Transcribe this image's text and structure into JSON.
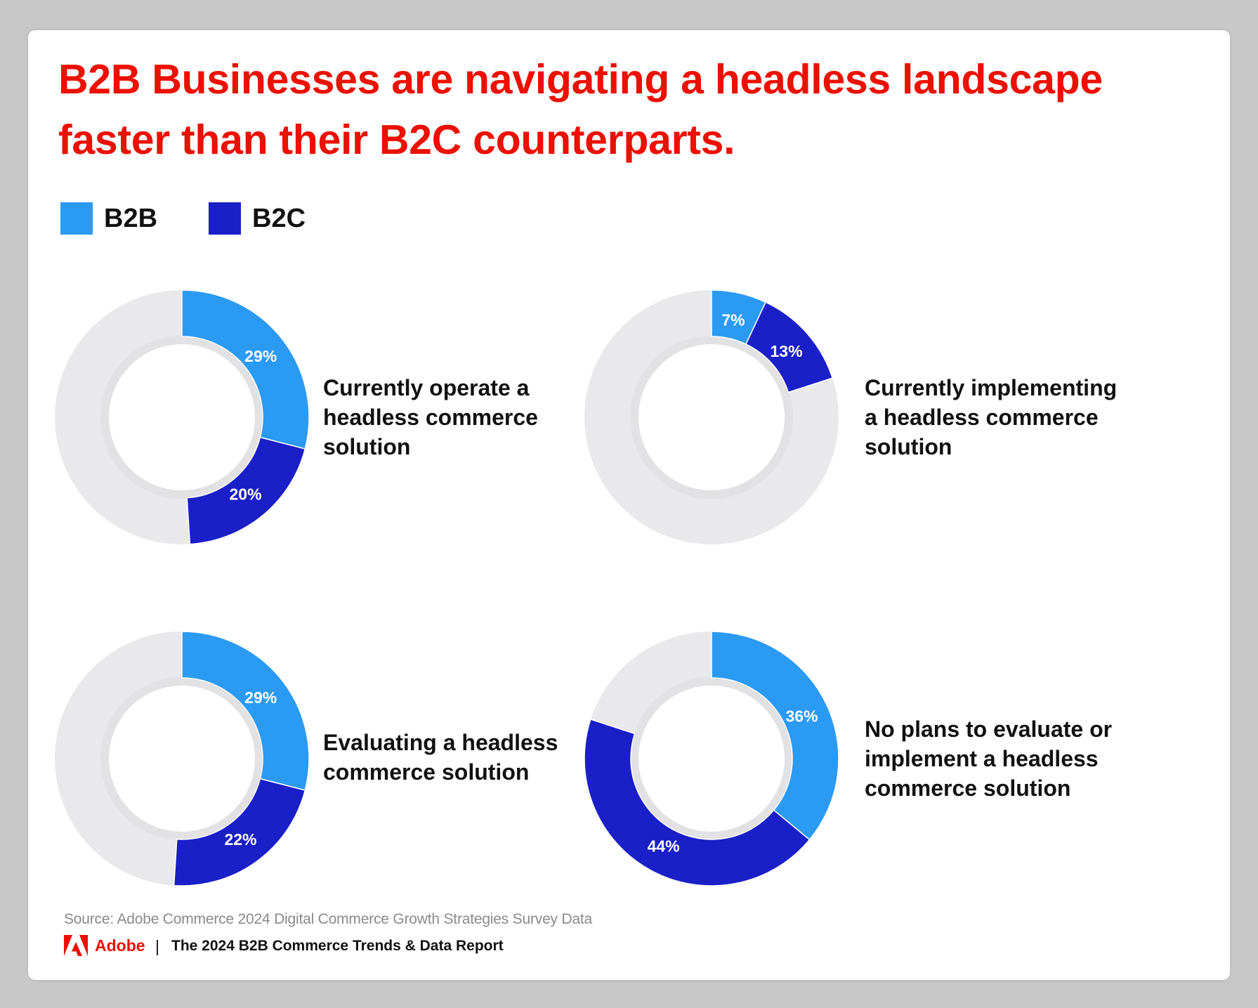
{
  "title": "B2B Businesses are navigating a headless landscape faster than their B2C counterparts.",
  "legend": [
    {
      "label": "B2B",
      "color": "#2b9af3"
    },
    {
      "label": "B2C",
      "color": "#1a1fc7"
    }
  ],
  "colors": {
    "remainder": "#e9e9eb",
    "title": "#eb1000",
    "b2b": "#2b9af3",
    "b2c": "#1a1fc7"
  },
  "chart_data": [
    {
      "type": "pie",
      "variant": "donut",
      "label": "Currently operate a headless commerce solution",
      "series": [
        {
          "name": "B2B",
          "value": 29,
          "display": "29%"
        },
        {
          "name": "B2C",
          "value": 20,
          "display": "20%"
        }
      ]
    },
    {
      "type": "pie",
      "variant": "donut",
      "label": "Currently implementing a headless commerce solution",
      "series": [
        {
          "name": "B2B",
          "value": 7,
          "display": "7%"
        },
        {
          "name": "B2C",
          "value": 13,
          "display": "13%"
        }
      ]
    },
    {
      "type": "pie",
      "variant": "donut",
      "label": "Evaluating a headless commerce solution",
      "series": [
        {
          "name": "B2B",
          "value": 29,
          "display": "29%"
        },
        {
          "name": "B2C",
          "value": 22,
          "display": "22%"
        }
      ]
    },
    {
      "type": "pie",
      "variant": "donut",
      "label": "No plans to evaluate or implement a headless commerce solution",
      "series": [
        {
          "name": "B2B",
          "value": 36,
          "display": "36%"
        },
        {
          "name": "B2C",
          "value": 44,
          "display": "44%"
        }
      ]
    }
  ],
  "source": "Source: Adobe Commerce 2024 Digital Commerce Growth Strategies Survey Data",
  "footer": {
    "brand": "Adobe",
    "separator": "|",
    "report": "The 2024 B2B Commerce Trends & Data Report",
    "logo_icon": "adobe-logo-icon"
  }
}
